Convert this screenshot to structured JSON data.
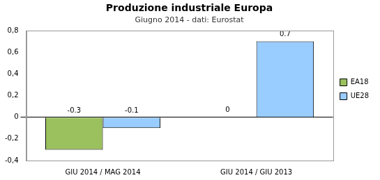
{
  "chart_data": {
    "type": "bar",
    "title": "Produzione industriale Europa",
    "subtitle": "Giugno 2014 - dati: Eurostat",
    "categories": [
      "GIU 2014 / MAG 2014",
      "GIU 2014 / GIU 2013"
    ],
    "series": [
      {
        "name": "EA18",
        "color": "#9bc05e",
        "values": [
          -0.3,
          0
        ]
      },
      {
        "name": "UE28",
        "color": "#99ccff",
        "values": [
          -0.1,
          0.7
        ]
      }
    ],
    "ylim": [
      -0.4,
      0.8
    ],
    "yticks": [
      {
        "value": -0.4,
        "label": "-0,4"
      },
      {
        "value": -0.2,
        "label": "-0,2"
      },
      0,
      {
        "value": 0.2,
        "label": "0,2"
      },
      {
        "value": 0.4,
        "label": "0,4"
      },
      {
        "value": 0.6,
        "label": "0,6"
      },
      {
        "value": 0.8,
        "label": "0,8"
      }
    ],
    "grid": false,
    "legend": "right",
    "data_labels": true
  }
}
